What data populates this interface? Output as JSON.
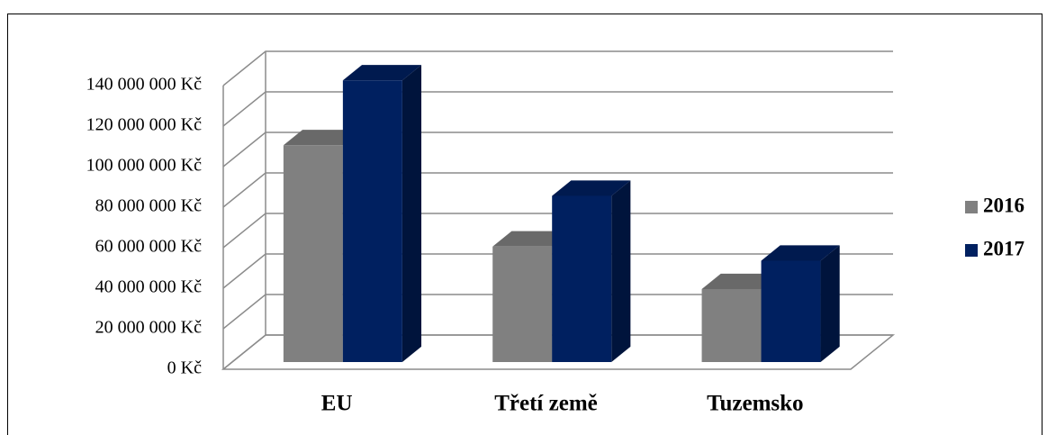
{
  "chart_data": {
    "type": "bar3d",
    "categories": [
      "EU",
      "Třetí země",
      "Tuzemsko"
    ],
    "series": [
      {
        "name": "2016",
        "color": "#808080",
        "values": [
          107000000,
          57000000,
          36000000
        ]
      },
      {
        "name": "2017",
        "color": "#002060",
        "values": [
          139000000,
          82000000,
          50000000
        ]
      }
    ],
    "ylim": [
      0,
      140000000
    ],
    "yticks": [
      {
        "value": 0,
        "label": "0 Kč"
      },
      {
        "value": 20000000,
        "label": "20 000 000 Kč"
      },
      {
        "value": 40000000,
        "label": "40 000 000 Kč"
      },
      {
        "value": 60000000,
        "label": "60 000 000 Kč"
      },
      {
        "value": 80000000,
        "label": "80 000 000 Kč"
      },
      {
        "value": 100000000,
        "label": "100 000 000 Kč"
      },
      {
        "value": 120000000,
        "label": "120 000 000 Kč"
      },
      {
        "value": 140000000,
        "label": "140 000 000 Kč"
      }
    ],
    "grid": true,
    "legend": "right"
  }
}
